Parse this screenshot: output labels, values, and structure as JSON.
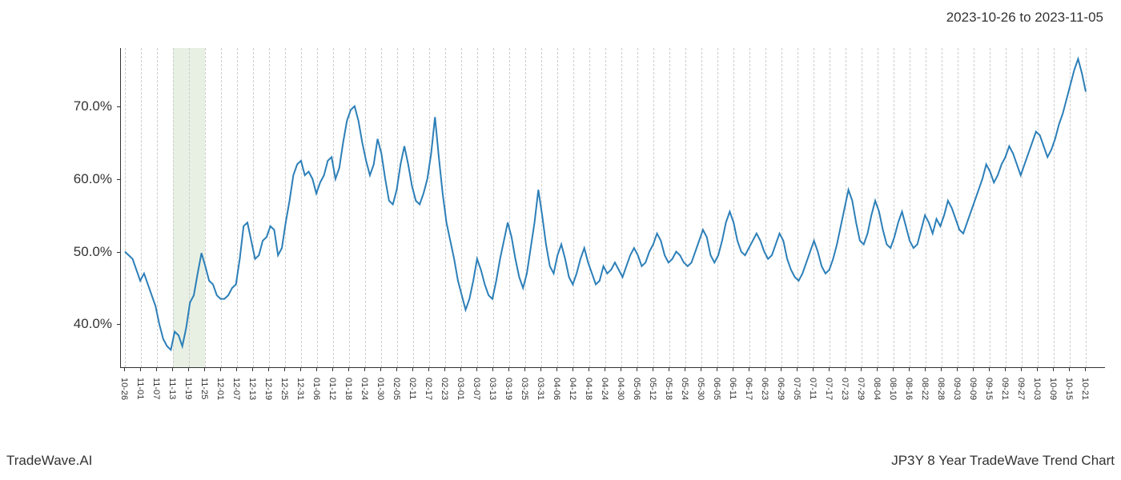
{
  "header": {
    "date_range": "2023-10-26 to 2023-11-05"
  },
  "footer": {
    "left": "TradeWave.AI",
    "right": "JP3Y 8 Year TradeWave Trend Chart"
  },
  "chart": {
    "type": "line",
    "background_color": "#ffffff",
    "line_color": "#2c7fb8",
    "line_width": 2,
    "grid_color": "#cccccc",
    "axis_color": "#333333",
    "text_color": "#333333",
    "highlight_band": {
      "color": "#e8f0e4",
      "x_start_index": 3,
      "x_end_index": 5
    },
    "y_axis": {
      "min": 34,
      "max": 78,
      "ticks": [
        40.0,
        50.0,
        60.0,
        70.0
      ],
      "tick_labels": [
        "40.0%",
        "50.0%",
        "60.0%",
        "70.0%"
      ],
      "label_fontsize": 17
    },
    "x_axis": {
      "labels": [
        "10-26",
        "11-01",
        "11-07",
        "11-13",
        "11-19",
        "11-25",
        "12-01",
        "12-07",
        "12-13",
        "12-19",
        "12-25",
        "12-31",
        "01-06",
        "01-12",
        "01-18",
        "01-24",
        "01-30",
        "02-05",
        "02-11",
        "02-17",
        "02-23",
        "03-01",
        "03-07",
        "03-13",
        "03-19",
        "03-25",
        "03-31",
        "04-06",
        "04-12",
        "04-18",
        "04-24",
        "04-30",
        "05-06",
        "05-12",
        "05-18",
        "05-24",
        "05-30",
        "06-05",
        "06-11",
        "06-17",
        "06-23",
        "06-29",
        "07-05",
        "07-11",
        "07-17",
        "07-23",
        "07-29",
        "08-04",
        "08-10",
        "08-16",
        "08-22",
        "08-28",
        "09-03",
        "09-09",
        "09-15",
        "09-21",
        "09-27",
        "10-03",
        "10-09",
        "10-15",
        "10-21"
      ],
      "label_fontsize": 11,
      "label_rotation": 90
    },
    "series": [
      50.0,
      49.5,
      49.0,
      47.5,
      46.0,
      47.0,
      45.5,
      44.0,
      42.5,
      40.0,
      38.0,
      37.0,
      36.5,
      39.0,
      38.5,
      37.0,
      39.5,
      43.0,
      44.0,
      47.0,
      49.8,
      48.0,
      46.0,
      45.5,
      44.0,
      43.5,
      43.5,
      44.0,
      45.0,
      45.5,
      49.0,
      53.5,
      54.0,
      51.5,
      49.0,
      49.5,
      51.5,
      52.0,
      53.5,
      53.0,
      49.5,
      50.5,
      54.0,
      57.0,
      60.5,
      62.0,
      62.5,
      60.5,
      61.0,
      60.0,
      58.0,
      59.5,
      60.5,
      62.5,
      63.0,
      60.0,
      61.5,
      65.0,
      68.0,
      69.5,
      70.0,
      68.0,
      65.0,
      62.5,
      60.5,
      62.0,
      65.5,
      63.5,
      60.0,
      57.0,
      56.5,
      58.5,
      62.0,
      64.5,
      62.0,
      59.0,
      57.0,
      56.5,
      58.0,
      60.0,
      63.5,
      68.5,
      63.0,
      58.0,
      54.0,
      51.5,
      49.0,
      46.0,
      44.0,
      42.0,
      43.5,
      46.0,
      49.0,
      47.5,
      45.5,
      44.0,
      43.5,
      46.0,
      49.0,
      51.5,
      54.0,
      52.0,
      49.0,
      46.5,
      45.0,
      47.0,
      50.5,
      54.0,
      58.5,
      55.0,
      51.0,
      48.0,
      47.0,
      49.5,
      51.0,
      49.0,
      46.5,
      45.5,
      47.0,
      49.0,
      50.5,
      48.5,
      47.0,
      45.5,
      46.0,
      48.0,
      47.0,
      47.5,
      48.5,
      47.5,
      46.5,
      48.0,
      49.5,
      50.5,
      49.5,
      48.0,
      48.5,
      50.0,
      51.0,
      52.5,
      51.5,
      49.5,
      48.5,
      49.0,
      50.0,
      49.5,
      48.5,
      48.0,
      48.5,
      50.0,
      51.5,
      53.0,
      52.0,
      49.5,
      48.5,
      49.5,
      51.5,
      54.0,
      55.5,
      54.0,
      51.5,
      50.0,
      49.5,
      50.5,
      51.5,
      52.5,
      51.5,
      50.0,
      49.0,
      49.5,
      51.0,
      52.5,
      51.5,
      49.0,
      47.5,
      46.5,
      46.0,
      47.0,
      48.5,
      50.0,
      51.5,
      50.0,
      48.0,
      47.0,
      47.5,
      49.0,
      51.0,
      53.5,
      56.0,
      58.5,
      57.0,
      54.0,
      51.5,
      51.0,
      52.5,
      55.0,
      57.0,
      55.5,
      53.0,
      51.0,
      50.5,
      52.0,
      54.0,
      55.5,
      53.5,
      51.5,
      50.5,
      51.0,
      53.0,
      55.0,
      54.0,
      52.5,
      54.5,
      53.5,
      55.0,
      57.0,
      56.0,
      54.5,
      53.0,
      52.5,
      54.0,
      55.5,
      57.0,
      58.5,
      60.0,
      62.0,
      61.0,
      59.5,
      60.5,
      62.0,
      63.0,
      64.5,
      63.5,
      62.0,
      60.5,
      62.0,
      63.5,
      65.0,
      66.5,
      66.0,
      64.5,
      63.0,
      64.0,
      65.5,
      67.5,
      69.0,
      71.0,
      73.0,
      75.0,
      76.5,
      74.5,
      72.0
    ]
  }
}
